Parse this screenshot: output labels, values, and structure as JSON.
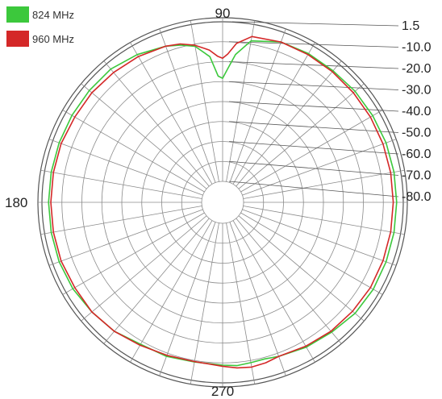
{
  "chart_data": {
    "type": "line",
    "title": "",
    "angle_labels": [
      "90",
      "180",
      "270"
    ],
    "radial_scale_labels": [
      "1.5",
      "-10.0",
      "-20.0",
      "-30.0",
      "-40.0",
      "-50.0",
      "-60.0",
      "-70.0",
      "-80.0"
    ],
    "angular_grid_step_deg": 10,
    "rings": 8,
    "legend_position": "top-left",
    "series": [
      {
        "name": "824 MHz",
        "color": "#3cc83c",
        "angles_deg": [
          0,
          10,
          20,
          30,
          40,
          50,
          60,
          70,
          75,
          80,
          85,
          88,
          90,
          92,
          95,
          100,
          110,
          120,
          130,
          140,
          150,
          160,
          170,
          180,
          190,
          200,
          210,
          220,
          230,
          240,
          250,
          255,
          260,
          265,
          270,
          280,
          290,
          300,
          310,
          320,
          330,
          340,
          350
        ],
        "values_db": [
          -1.5,
          -1.5,
          -1.5,
          -1.5,
          -1.5,
          -1.5,
          -3.0,
          -5.0,
          -6.5,
          -8.5,
          -14.0,
          -23.0,
          -24.0,
          -20.0,
          -13.0,
          -6.0,
          -3.0,
          -2.5,
          -2.5,
          -2.0,
          -1.8,
          -1.5,
          -1.5,
          -1.5,
          -1.5,
          -1.5,
          -1.5,
          -2.0,
          -3.5,
          -4.5,
          -6.0,
          -6.8,
          -6.5,
          -6.0,
          -6.5,
          -6.8,
          -6.0,
          -6.0,
          -4.0,
          -3.0,
          -2.0,
          -1.5,
          -1.5
        ]
      },
      {
        "name": "960 MHz",
        "color": "#d42828",
        "angles_deg": [
          0,
          10,
          20,
          30,
          40,
          50,
          60,
          70,
          75,
          80,
          85,
          88,
          90,
          92,
          95,
          100,
          110,
          120,
          130,
          140,
          150,
          160,
          170,
          180,
          190,
          200,
          210,
          220,
          230,
          240,
          250,
          255,
          260,
          265,
          270,
          280,
          290,
          300,
          310,
          320,
          330,
          340,
          350
        ],
        "values_db": [
          -2.5,
          -2.5,
          -2.5,
          -3.0,
          -3.0,
          -3.5,
          -4.0,
          -5.0,
          -6.0,
          -8.0,
          -11.0,
          -14.0,
          -15.0,
          -13.0,
          -8.0,
          -4.0,
          -3.0,
          -3.0,
          -3.0,
          -3.0,
          -3.0,
          -3.0,
          -3.0,
          -3.0,
          -3.0,
          -3.0,
          -3.0,
          -3.5,
          -4.0,
          -5.0,
          -6.0,
          -5.0,
          -4.5,
          -5.0,
          -6.0,
          -7.0,
          -6.5,
          -5.5,
          -4.0,
          -3.0,
          -3.0,
          -2.5,
          -2.5
        ]
      }
    ]
  }
}
